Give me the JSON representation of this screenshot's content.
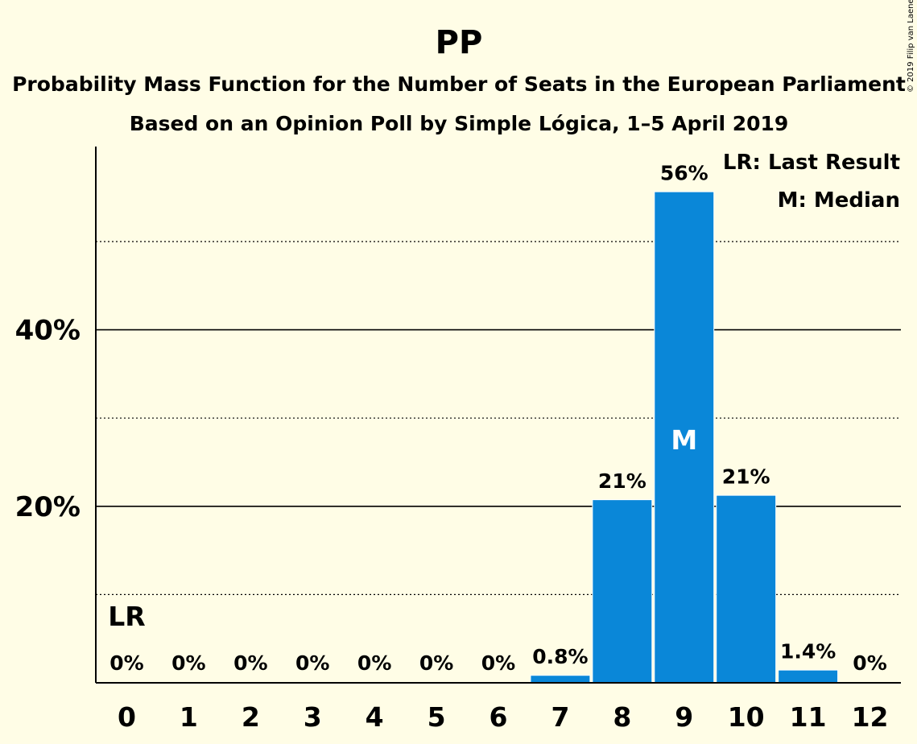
{
  "copyright": "© 2019 Filip van Laenen",
  "chart_data": {
    "type": "bar",
    "title": "PP",
    "subtitle_lines": [
      "Probability Mass Function for the Number of Seats in the European Parliament",
      "Based on an Opinion Poll by Simple Lógica, 1–5 April 2019"
    ],
    "categories": [
      "0",
      "1",
      "2",
      "3",
      "4",
      "5",
      "6",
      "7",
      "8",
      "9",
      "10",
      "11",
      "12"
    ],
    "values": [
      0,
      0,
      0,
      0,
      0,
      0,
      0,
      0.8,
      20.7,
      55.6,
      21.2,
      1.4,
      0
    ],
    "data_labels": [
      "0%",
      "0%",
      "0%",
      "0%",
      "0%",
      "0%",
      "0%",
      "0.8%",
      "21%",
      "56%",
      "21%",
      "1.4%",
      "0%"
    ],
    "ylim": [
      0,
      60
    ],
    "yticks": [
      {
        "value": 20,
        "label": "20%"
      },
      {
        "value": 40,
        "label": "40%"
      }
    ],
    "minor_gridlines": [
      10,
      30,
      50
    ],
    "major_gridlines": [
      20,
      40
    ],
    "bar_color": "#0A87D8",
    "last_result": {
      "index": 0,
      "label": "LR"
    },
    "median": {
      "index": 9,
      "label": "M"
    },
    "legend": [
      "LR: Last Result",
      "M: Median"
    ],
    "legend_position": "top-right"
  }
}
